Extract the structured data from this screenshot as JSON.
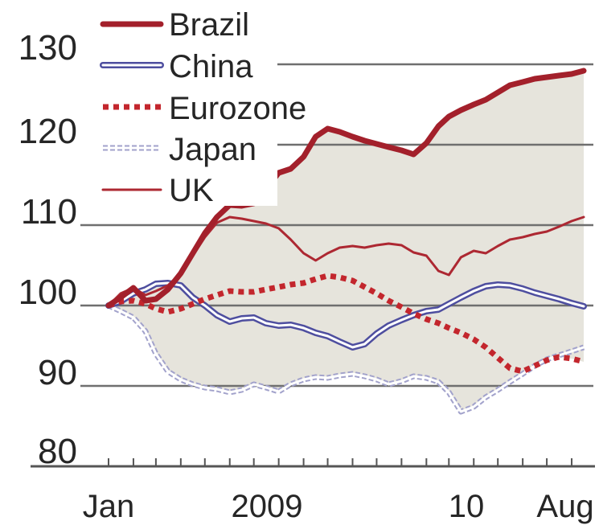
{
  "chart_data": {
    "type": "line",
    "x": [
      "2009-01-01",
      "2009-01-16",
      "2009-02-01",
      "2009-02-16",
      "2009-03-01",
      "2009-03-16",
      "2009-04-01",
      "2009-04-16",
      "2009-05-01",
      "2009-05-16",
      "2009-06-01",
      "2009-06-16",
      "2009-07-01",
      "2009-07-16",
      "2009-08-01",
      "2009-08-16",
      "2009-09-01",
      "2009-09-16",
      "2009-10-01",
      "2009-10-16",
      "2009-11-01",
      "2009-11-16",
      "2009-12-01",
      "2009-12-16",
      "2010-01-01",
      "2010-01-16",
      "2010-02-01",
      "2010-02-16",
      "2010-03-01",
      "2010-03-16",
      "2010-04-01",
      "2010-04-16",
      "2010-05-01",
      "2010-05-16",
      "2010-06-01",
      "2010-06-16",
      "2010-07-01",
      "2010-07-16",
      "2010-08-01",
      "2010-08-16"
    ],
    "x_tick_labels": [
      "Jan",
      "2009",
      "10",
      "Aug"
    ],
    "y_tick_labels": [
      "80",
      "90",
      "100",
      "110",
      "120",
      "130"
    ],
    "ylim": [
      80,
      130
    ],
    "grid": true,
    "legend_position": "top-left",
    "band_color": "#e6e4dc",
    "series": [
      {
        "name": "Brazil",
        "color": "#a3202b",
        "values": [
          100,
          101,
          102.2,
          100.6,
          100.8,
          102,
          104,
          106.5,
          109,
          111,
          112.5,
          112.4,
          112.7,
          114.5,
          116.5,
          117,
          118.5,
          121,
          122,
          121.6,
          121,
          120.5,
          120.1,
          119.7,
          119.3,
          118.8,
          120.2,
          122.3,
          123.5,
          124.3,
          125,
          125.6,
          126.5,
          127.4,
          127.8,
          128.2,
          128.4,
          128.6,
          128.8,
          129.2
        ]
      },
      {
        "name": "China",
        "color": "#4e4e9f",
        "values": [
          100,
          100.5,
          101.5,
          102,
          102.7,
          102.8,
          102.5,
          101,
          100,
          98.8,
          98,
          98.4,
          98.5,
          97.8,
          97.5,
          97.6,
          97.2,
          96.6,
          96.2,
          95.5,
          94.8,
          95.2,
          96.5,
          97.5,
          98.2,
          98.8,
          99.3,
          99.5,
          100.2,
          101,
          101.8,
          102.4,
          102.6,
          102.5,
          102.1,
          101.6,
          101.2,
          100.8,
          100.3,
          99.9
        ]
      },
      {
        "name": "Eurozone",
        "color": "#c3262d",
        "values": [
          100,
          100.5,
          100.6,
          100.2,
          99.6,
          99.2,
          99.6,
          100.2,
          100.8,
          101.3,
          101.8,
          101.7,
          101.7,
          102,
          102.3,
          102.6,
          102.8,
          103.3,
          103.7,
          103.5,
          103.1,
          102.3,
          101.5,
          100.6,
          99.8,
          99,
          98.3,
          97.8,
          97.2,
          96.6,
          95.8,
          94.8,
          93.5,
          92.2,
          91.8,
          92.5,
          93.2,
          93.6,
          93.4,
          93
        ]
      },
      {
        "name": "Japan",
        "color": "#a2a2cb",
        "values": [
          100,
          99.3,
          98.5,
          96.8,
          94,
          91.8,
          90.8,
          90.2,
          89.8,
          89.6,
          89.2,
          89.5,
          90.2,
          89.8,
          89.3,
          90.2,
          90.8,
          91.1,
          91,
          91.3,
          91.5,
          91.2,
          90.8,
          90.2,
          90.6,
          91.2,
          91,
          90.5,
          89.2,
          86.8,
          87.4,
          88.6,
          89.5,
          90.5,
          91.5,
          92.5,
          93.3,
          93.8,
          94.3,
          94.8
        ]
      },
      {
        "name": "UK",
        "color": "#ad2832",
        "values": [
          100,
          101.5,
          102.2,
          101.3,
          101.8,
          102.5,
          104,
          106.2,
          108.5,
          110.3,
          111,
          110.8,
          110.5,
          110.2,
          109.6,
          108.2,
          106.5,
          105.6,
          106.5,
          107.2,
          107.4,
          107.2,
          107.5,
          107.7,
          107.5,
          106.6,
          106.2,
          104.3,
          103.8,
          106,
          106.8,
          106.5,
          107.4,
          108.2,
          108.5,
          108.9,
          109.2,
          109.8,
          110.5,
          111
        ]
      }
    ]
  }
}
